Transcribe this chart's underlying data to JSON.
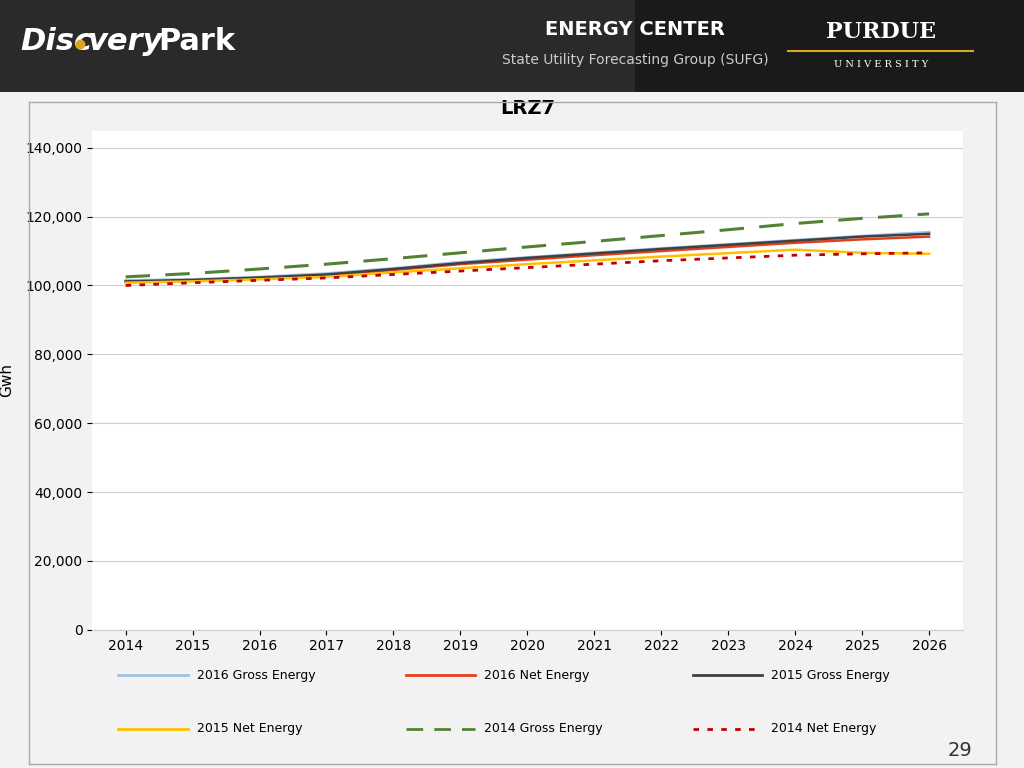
{
  "title": "LRZ7",
  "ylabel": "Gwh",
  "x_years": [
    2014,
    2015,
    2016,
    2017,
    2018,
    2019,
    2020,
    2021,
    2022,
    2023,
    2024,
    2025,
    2026
  ],
  "series": {
    "2016 Gross Energy": {
      "color": "#9DC3E6",
      "linestyle": "solid",
      "linewidth": 1.8,
      "values": [
        101500,
        101800,
        102500,
        103500,
        105000,
        106800,
        108200,
        109500,
        110800,
        112000,
        113200,
        114400,
        115500
      ]
    },
    "2016 Net Energy": {
      "color": "#E2401C",
      "linestyle": "solid",
      "linewidth": 1.8,
      "values": [
        101000,
        101500,
        102200,
        103000,
        104500,
        106200,
        107500,
        108800,
        110000,
        111200,
        112400,
        113400,
        114200
      ]
    },
    "2015 Gross Energy": {
      "color": "#404040",
      "linestyle": "solid",
      "linewidth": 1.8,
      "values": [
        101200,
        101600,
        102300,
        103200,
        104800,
        106500,
        108000,
        109300,
        110600,
        111800,
        113000,
        114200,
        115000
      ]
    },
    "2015 Net Energy": {
      "color": "#FFC000",
      "linestyle": "solid",
      "linewidth": 1.8,
      "values": [
        100800,
        101200,
        101800,
        102500,
        103800,
        105000,
        106200,
        107300,
        108400,
        109400,
        110400,
        109500,
        109200
      ]
    },
    "2014 Gross Energy": {
      "color": "#548235",
      "linestyle": "dashed",
      "linewidth": 2.2,
      "values": [
        102500,
        103500,
        104800,
        106200,
        107800,
        109500,
        111200,
        112800,
        114500,
        116200,
        118000,
        119500,
        120800
      ]
    },
    "2014 Net Energy": {
      "color": "#C00000",
      "linestyle": "dotted",
      "linewidth": 2.0,
      "values": [
        100000,
        100800,
        101500,
        102200,
        103200,
        104200,
        105200,
        106200,
        107200,
        108000,
        108800,
        109200,
        109500
      ]
    }
  },
  "ylim": [
    0,
    145000
  ],
  "yticks": [
    0,
    20000,
    40000,
    60000,
    80000,
    100000,
    120000,
    140000
  ],
  "xlim": [
    2013.5,
    2026.5
  ],
  "xticks": [
    2014,
    2015,
    2016,
    2017,
    2018,
    2019,
    2020,
    2021,
    2022,
    2023,
    2024,
    2025,
    2026
  ],
  "background_header": "#2d2d2d",
  "chart_bg": "#ffffff",
  "outer_bg": "#f0f0f0",
  "page_number": "29",
  "header_title": "ENERGY CENTER",
  "header_subtitle": "State Utility Forecasting Group (SUFG)"
}
